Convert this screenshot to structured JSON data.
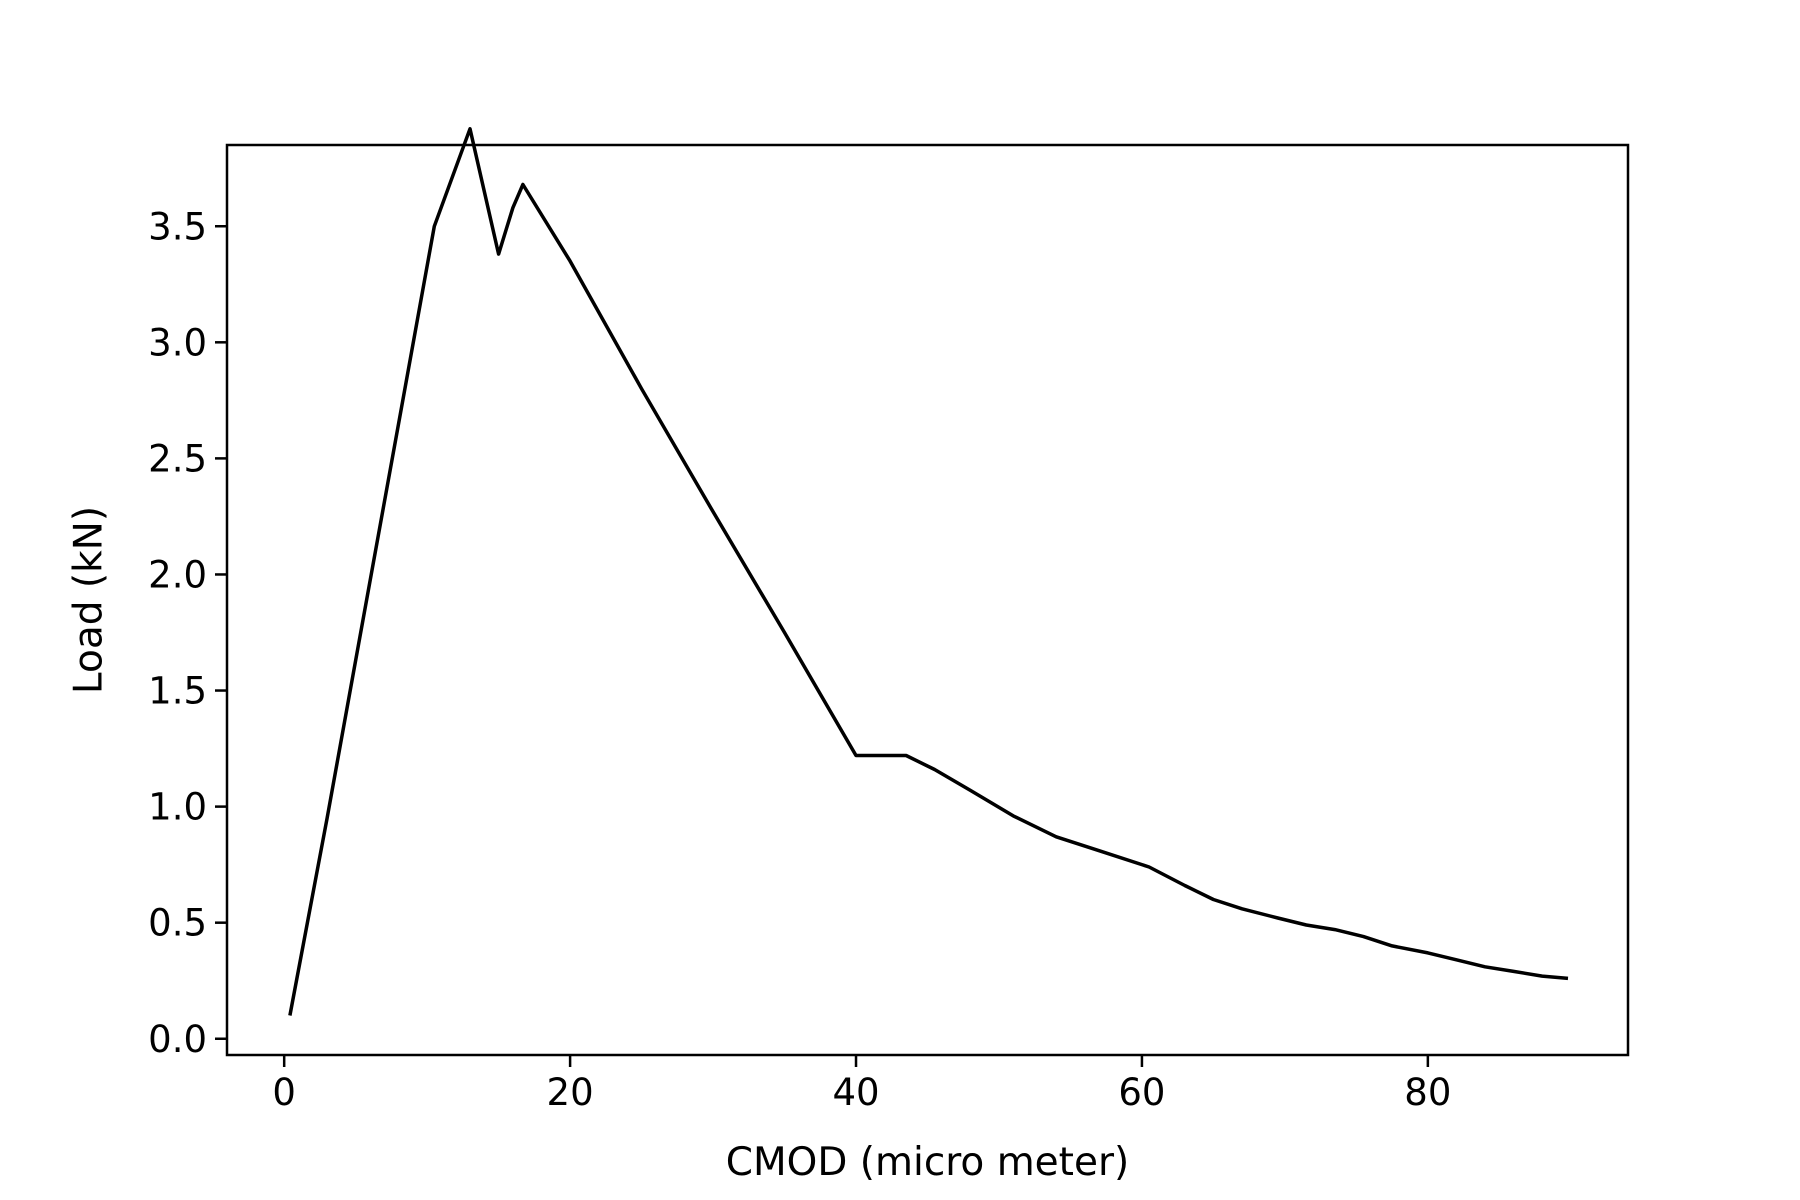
{
  "chart_data": {
    "type": "line",
    "title": "",
    "xlabel": "CMOD (micro meter)",
    "ylabel": "Load (kN)",
    "xlim": [
      -4,
      94
    ],
    "ylim": [
      -0.07,
      3.85
    ],
    "xticks": [
      0,
      20,
      40,
      60,
      80
    ],
    "yticks": [
      0.0,
      0.5,
      1.0,
      1.5,
      2.0,
      2.5,
      3.0,
      3.5
    ],
    "xtick_labels": [
      "0",
      "20",
      "40",
      "60",
      "80"
    ],
    "ytick_labels": [
      "0.0",
      "0.5",
      "1.0",
      "1.5",
      "2.0",
      "2.5",
      "3.0",
      "3.5"
    ],
    "grid": false,
    "line_color": "#000000",
    "series": [
      {
        "x": [
          0.4,
          3.0,
          5.5,
          8.0,
          10.5,
          13.0,
          15.0,
          16.0,
          16.7,
          20.0,
          25.0,
          30.0,
          35.0,
          40.0,
          43.5,
          45.5,
          48.0,
          51.0,
          54.0,
          57.0,
          60.5,
          63.0,
          65.0,
          67.0,
          69.5,
          71.5,
          73.5,
          75.5,
          77.5,
          80.0,
          82.0,
          84.0,
          86.0,
          88.0,
          89.8
        ],
        "y": [
          0.1,
          0.95,
          1.8,
          2.65,
          3.5,
          3.92,
          3.38,
          3.58,
          3.68,
          3.35,
          2.8,
          2.27,
          1.75,
          1.22,
          1.22,
          1.16,
          1.07,
          0.96,
          0.87,
          0.81,
          0.74,
          0.66,
          0.6,
          0.56,
          0.52,
          0.49,
          0.47,
          0.44,
          0.4,
          0.37,
          0.34,
          0.31,
          0.29,
          0.27,
          0.26
        ]
      }
    ]
  }
}
